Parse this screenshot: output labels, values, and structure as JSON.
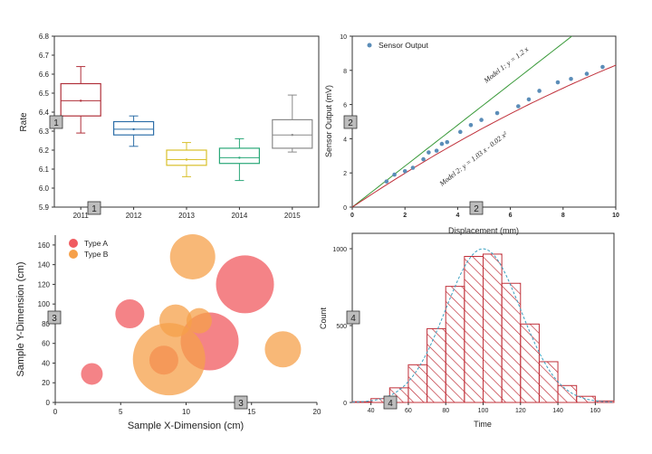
{
  "chart_data": [
    {
      "panel": "top-left",
      "type": "box",
      "ylabel": "Rate",
      "xlabel": "",
      "ylim": [
        5.9,
        6.8
      ],
      "yticks": [
        "5.9",
        "6.0",
        "6.1",
        "6.2",
        "6.3",
        "6.4",
        "6.5",
        "6.6",
        "6.7",
        "6.8"
      ],
      "categories": [
        "2011",
        "2012",
        "2013",
        "2014",
        "2015"
      ],
      "boxes": [
        {
          "q1": 6.38,
          "median": 6.46,
          "q3": 6.55,
          "whisker_low": 6.29,
          "whisker_high": 6.64,
          "mean": 6.46,
          "color": "#b0303a"
        },
        {
          "q1": 6.28,
          "median": 6.31,
          "q3": 6.35,
          "whisker_low": 6.22,
          "whisker_high": 6.38,
          "mean": 6.31,
          "color": "#2e6fa8"
        },
        {
          "q1": 6.12,
          "median": 6.15,
          "q3": 6.2,
          "whisker_low": 6.06,
          "whisker_high": 6.24,
          "mean": 6.15,
          "color": "#d8c02c"
        },
        {
          "q1": 6.13,
          "median": 6.16,
          "q3": 6.21,
          "whisker_low": 6.04,
          "whisker_high": 6.26,
          "mean": 6.16,
          "color": "#2aa878"
        },
        {
          "q1": 6.21,
          "median": 6.28,
          "q3": 6.36,
          "whisker_low": 6.19,
          "whisker_high": 6.49,
          "mean": 6.28,
          "color": "#8a8a8a"
        }
      ],
      "tags": [
        "1",
        "1"
      ]
    },
    {
      "panel": "top-right",
      "type": "scatter",
      "xlabel": "Displacement (mm)",
      "ylabel": "Sensor Output (mV)",
      "xlim": [
        0,
        10
      ],
      "ylim": [
        0,
        10
      ],
      "xticks": [
        "0",
        "2",
        "4",
        "6",
        "8",
        "10"
      ],
      "yticks": [
        "0",
        "2",
        "4",
        "6",
        "8",
        "10"
      ],
      "legend": "Sensor Output",
      "series": [
        {
          "name": "Sensor Output",
          "color": "#5b8db8",
          "x": [
            1.3,
            1.6,
            2.0,
            2.3,
            2.7,
            2.9,
            3.2,
            3.4,
            3.6,
            4.1,
            4.5,
            4.9,
            5.5,
            6.3,
            6.7,
            7.1,
            7.8,
            8.3,
            8.9,
            9.5
          ],
          "y": [
            1.5,
            1.9,
            2.1,
            2.3,
            2.8,
            3.2,
            3.3,
            3.7,
            3.8,
            4.4,
            4.8,
            5.1,
            5.5,
            5.9,
            6.3,
            6.8,
            7.3,
            7.5,
            7.8,
            8.2
          ]
        }
      ],
      "models": [
        {
          "name": "Model 1",
          "label": "Model 1: y = 1.2 x",
          "color": "#3a9a3a",
          "a": 1.2,
          "b": 0
        },
        {
          "name": "Model 2",
          "label": "Model 2: y = 1.03 x - 0.02 x²",
          "color": "#c0303a",
          "a": 1.03,
          "b": -0.02
        }
      ],
      "tags": [
        "2",
        "2"
      ]
    },
    {
      "panel": "bottom-left",
      "type": "bubble",
      "xlabel": "Sample X-Dimension (cm)",
      "ylabel": "Sample Y-Dimension (cm)",
      "xlim": [
        0,
        20
      ],
      "ylim": [
        0,
        170
      ],
      "xticks": [
        "0",
        "5",
        "10",
        "15",
        "20"
      ],
      "yticks": [
        "0",
        "20",
        "40",
        "60",
        "80",
        "100",
        "120",
        "140",
        "160"
      ],
      "legend": [
        "Type A",
        "Type B"
      ],
      "colors": {
        "Type A": "#f05a5f",
        "Type B": "#f6a04a"
      },
      "bubbles": [
        {
          "type": "Type A",
          "x": 2.8,
          "y": 29,
          "r": 12
        },
        {
          "type": "Type A",
          "x": 5.7,
          "y": 90,
          "r": 16
        },
        {
          "type": "Type A",
          "x": 8.3,
          "y": 43,
          "r": 16
        },
        {
          "type": "Type A",
          "x": 11.8,
          "y": 62,
          "r": 32
        },
        {
          "type": "Type A",
          "x": 14.5,
          "y": 120,
          "r": 32
        },
        {
          "type": "Type B",
          "x": 10.5,
          "y": 148,
          "r": 25
        },
        {
          "type": "Type B",
          "x": 9.2,
          "y": 83,
          "r": 18
        },
        {
          "type": "Type B",
          "x": 11.0,
          "y": 83,
          "r": 14
        },
        {
          "type": "Type B",
          "x": 8.7,
          "y": 44,
          "r": 40
        },
        {
          "type": "Type B",
          "x": 17.4,
          "y": 54,
          "r": 20
        }
      ],
      "tags": [
        "3",
        "3"
      ]
    },
    {
      "panel": "bottom-right",
      "type": "histogram",
      "xlabel": "Time",
      "ylabel": "Count",
      "xlim": [
        30,
        170
      ],
      "ylim": [
        0,
        1100
      ],
      "xticks": [
        "40",
        "60",
        "80",
        "100",
        "120",
        "140",
        "160"
      ],
      "yticks": [
        "0",
        "500",
        "1000"
      ],
      "bin_width": 10,
      "bins": [
        {
          "start": 30,
          "count": 5
        },
        {
          "start": 40,
          "count": 25
        },
        {
          "start": 50,
          "count": 95
        },
        {
          "start": 60,
          "count": 245
        },
        {
          "start": 70,
          "count": 480
        },
        {
          "start": 80,
          "count": 755
        },
        {
          "start": 90,
          "count": 950
        },
        {
          "start": 100,
          "count": 965
        },
        {
          "start": 110,
          "count": 775
        },
        {
          "start": 120,
          "count": 510
        },
        {
          "start": 130,
          "count": 265
        },
        {
          "start": 140,
          "count": 110
        },
        {
          "start": 150,
          "count": 40
        },
        {
          "start": 160,
          "count": 10
        }
      ],
      "fit": {
        "type": "normal",
        "mean": 100,
        "sd": 20,
        "peak": 1000,
        "color": "#3aa0c0"
      },
      "bar_color": "#c0303a",
      "tags": [
        "4",
        "4"
      ]
    }
  ]
}
